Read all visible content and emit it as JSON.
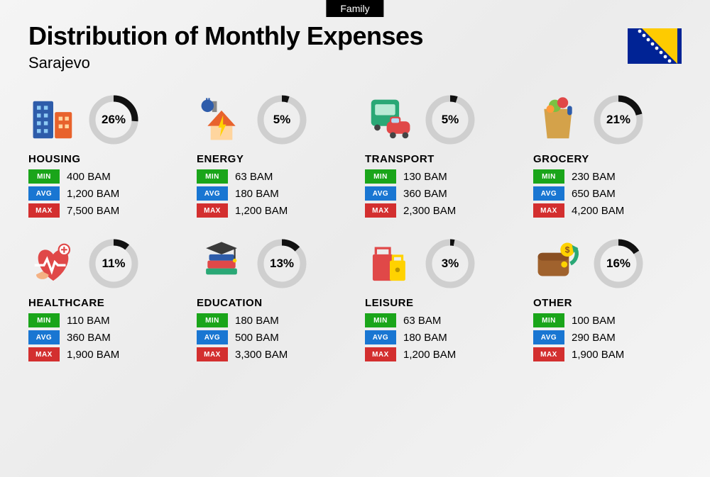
{
  "tag": "Family",
  "title": "Distribution of Monthly Expenses",
  "subtitle": "Sarajevo",
  "currency": "BAM",
  "colors": {
    "min_badge": "#1aa51a",
    "avg_badge": "#1976d2",
    "max_badge": "#d32f2f",
    "ring_stroke": "#111111",
    "ring_track": "#cfcfcf",
    "text": "#111111",
    "background": "#f0f0f0"
  },
  "ring": {
    "radius": 30,
    "stroke_width": 9,
    "size": 72
  },
  "labels": {
    "min": "MIN",
    "avg": "AVG",
    "max": "MAX"
  },
  "categories": [
    {
      "name": "HOUSING",
      "percent": 26,
      "min": "400 BAM",
      "avg": "1,200 BAM",
      "max": "7,500 BAM",
      "icon": "housing"
    },
    {
      "name": "ENERGY",
      "percent": 5,
      "min": "63 BAM",
      "avg": "180 BAM",
      "max": "1,200 BAM",
      "icon": "energy"
    },
    {
      "name": "TRANSPORT",
      "percent": 5,
      "min": "130 BAM",
      "avg": "360 BAM",
      "max": "2,300 BAM",
      "icon": "transport"
    },
    {
      "name": "GROCERY",
      "percent": 21,
      "min": "230 BAM",
      "avg": "650 BAM",
      "max": "4,200 BAM",
      "icon": "grocery"
    },
    {
      "name": "HEALTHCARE",
      "percent": 11,
      "min": "110 BAM",
      "avg": "360 BAM",
      "max": "1,900 BAM",
      "icon": "healthcare"
    },
    {
      "name": "EDUCATION",
      "percent": 13,
      "min": "180 BAM",
      "avg": "500 BAM",
      "max": "3,300 BAM",
      "icon": "education"
    },
    {
      "name": "LEISURE",
      "percent": 3,
      "min": "63 BAM",
      "avg": "180 BAM",
      "max": "1,200 BAM",
      "icon": "leisure"
    },
    {
      "name": "OTHER",
      "percent": 16,
      "min": "100 BAM",
      "avg": "290 BAM",
      "max": "1,900 BAM",
      "icon": "other"
    }
  ],
  "flag": {
    "bg": "#002395",
    "triangle": "#fecb00",
    "star": "#ffffff"
  }
}
